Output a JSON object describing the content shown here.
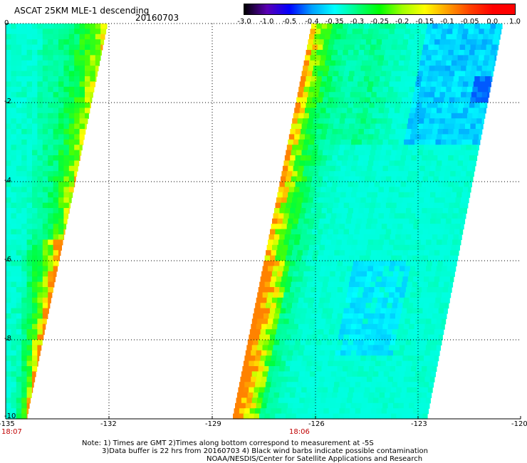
{
  "title": "ASCAT 25KM MLE-1 descending",
  "date": "20160703",
  "colorbar": {
    "labels": [
      "-3.0",
      "-1.0",
      "-0.5",
      "-0.4",
      "-0.35",
      "-0.3",
      "-0.25",
      "-0.2",
      "-0.15",
      "-0.1",
      "-0.05",
      "0.0",
      "1.0"
    ],
    "colors": [
      "#000000",
      "#5a00b4",
      "#0000ff",
      "#00a0ff",
      "#00ffff",
      "#00ff80",
      "#00ff00",
      "#a0ff00",
      "#ffff00",
      "#ffa000",
      "#ff4000",
      "#ff0000"
    ]
  },
  "axes": {
    "lon_labels": [
      "-135",
      "-132",
      "-129",
      "-126",
      "-123",
      "-120"
    ],
    "lat_labels": [
      "0",
      "-2",
      "-4",
      "-6",
      "-8",
      "-10"
    ],
    "lon_range": [
      -135,
      -120
    ],
    "lat_range": [
      0,
      -10
    ]
  },
  "times": [
    "18:07",
    "18:06"
  ],
  "notes": [
    "Note: 1) Times are GMT 2)Times along bottom correspond to measurement at -5S",
    "3)Data buffer is 22 hrs from 20160703 4) Black wind barbs indicate possible contamination",
    "NOAA/NESDIS/Center for Satellite Applications and Research"
  ]
}
